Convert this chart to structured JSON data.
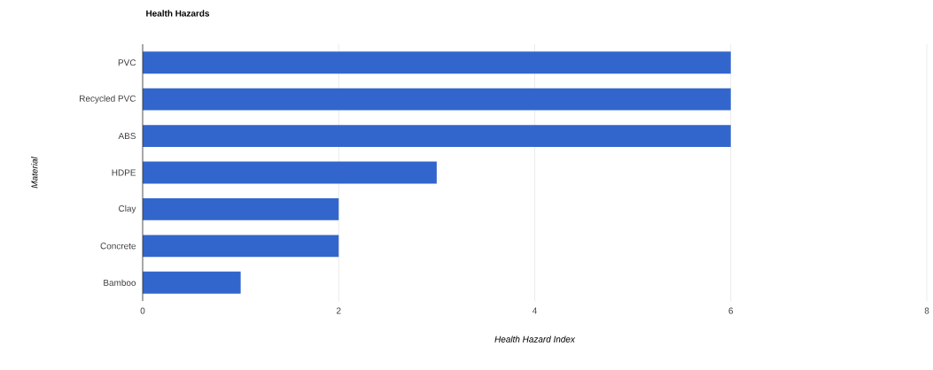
{
  "chart_data": {
    "type": "bar",
    "orientation": "horizontal",
    "title": "Health Hazards",
    "xlabel": "Health Hazard Index",
    "ylabel": "Material",
    "categories": [
      "PVC",
      "Recycled PVC",
      "ABS",
      "HDPE",
      "Clay",
      "Concrete",
      "Bamboo"
    ],
    "values": [
      6,
      6,
      6,
      3,
      2,
      2,
      1
    ],
    "color": "#3366cc",
    "xlim": [
      0,
      8
    ],
    "xticks": [
      0,
      2,
      4,
      6,
      8
    ],
    "grid": "x"
  }
}
